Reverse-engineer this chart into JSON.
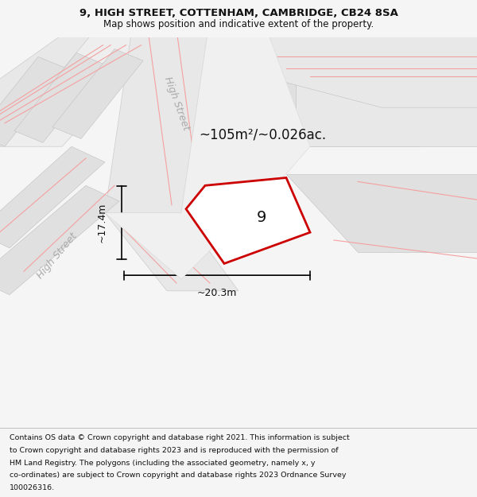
{
  "title_line1": "9, HIGH STREET, COTTENHAM, CAMBRIDGE, CB24 8SA",
  "title_line2": "Map shows position and indicative extent of the property.",
  "footer_lines": [
    "Contains OS data © Crown copyright and database right 2021. This information is subject",
    "to Crown copyright and database rights 2023 and is reproduced with the permission of",
    "HM Land Registry. The polygons (including the associated geometry, namely x, y",
    "co-ordinates) are subject to Crown copyright and database rights 2023 Ordnance Survey",
    "100026316."
  ],
  "bg_color": "#f5f5f5",
  "map_bg": "#ffffff",
  "area_label": "~105m²/~0.026ac.",
  "plot_number": "9",
  "width_label": "~20.3m",
  "height_label": "~17.4m",
  "street_label_1": "High Street",
  "street_label_2": "High Street",
  "pink_line_color": "#f5a0a0",
  "polygon_edge": "#cc0000"
}
